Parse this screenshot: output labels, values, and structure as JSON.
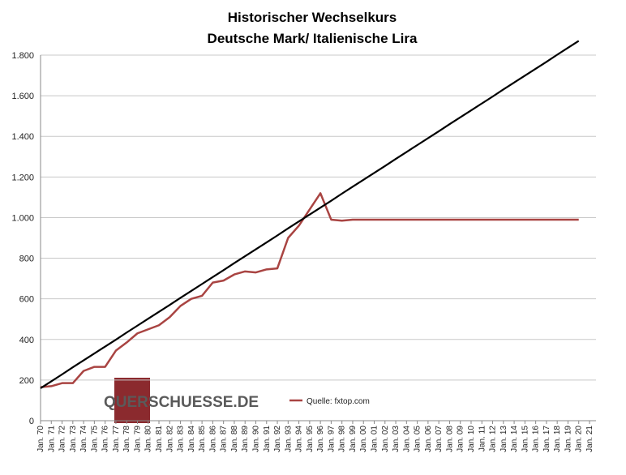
{
  "chart_data": {
    "type": "line",
    "title": [
      "Historischer Wechselkurs",
      "Deutsche Mark/ Italienische Lira"
    ],
    "categories": [
      "Jan. 70",
      "Jan. 71",
      "Jan. 72",
      "Jan. 73",
      "Jan. 74",
      "Jan. 75",
      "Jan. 76",
      "Jan. 77",
      "Jan. 78",
      "Jan. 79",
      "Jan. 80",
      "Jan. 81",
      "Jan. 82",
      "Jan. 83",
      "Jan. 84",
      "Jan. 85",
      "Jan. 86",
      "Jan. 87",
      "Jan. 88",
      "Jan. 89",
      "Jan. 90",
      "Jan. 91",
      "Jan. 92",
      "Jan. 93",
      "Jan. 94",
      "Jan. 95",
      "Jan. 96",
      "Jan. 97",
      "Jan. 98",
      "Jan. 99",
      "Jan. 00",
      "Jan. 01",
      "Jan. 02",
      "Jan. 03",
      "Jan. 04",
      "Jan. 05",
      "Jan. 06",
      "Jan. 07",
      "Jan. 08",
      "Jan. 09",
      "Jan. 10",
      "Jan. 11",
      "Jan. 12",
      "Jan. 13",
      "Jan. 14",
      "Jan. 15",
      "Jan. 16",
      "Jan. 17",
      "Jan. 18",
      "Jan. 19",
      "Jan. 20",
      "Jan. 21"
    ],
    "series": [
      {
        "name": "Quelle: fxtop.com",
        "color": "#a94442",
        "values": [
          165,
          170,
          185,
          185,
          245,
          265,
          265,
          345,
          385,
          430,
          450,
          470,
          510,
          565,
          600,
          615,
          680,
          690,
          720,
          735,
          730,
          745,
          750,
          900,
          960,
          1040,
          1120,
          990,
          985,
          990,
          990,
          990,
          990,
          990,
          990,
          990,
          990,
          990,
          990,
          990,
          990,
          990,
          990,
          990,
          990,
          990,
          990,
          990,
          990,
          990,
          990,
          null
        ]
      },
      {
        "color": "#000000",
        "values": [
          160,
          194,
          228,
          263,
          297,
          331,
          365,
          399,
          434,
          468,
          502,
          536,
          570,
          605,
          639,
          673,
          707,
          741,
          776,
          810,
          844,
          878,
          912,
          947,
          981,
          1015,
          1049,
          1083,
          1118,
          1152,
          1186,
          1220,
          1254,
          1289,
          1323,
          1357,
          1391,
          1425,
          1460,
          1494,
          1528,
          1562,
          1596,
          1631,
          1665,
          1699,
          1733,
          1767,
          1802,
          1836,
          1870,
          null
        ]
      }
    ],
    "ylim": [
      0,
      1800
    ],
    "yticks": [
      0,
      200,
      400,
      600,
      800,
      {
        "value": 1000,
        "label": "1.000"
      },
      {
        "value": 1200,
        "label": "1.200"
      },
      {
        "value": 1400,
        "label": "1.400"
      },
      {
        "value": 1600,
        "label": "1.600"
      },
      {
        "value": 1800,
        "label": "1.800"
      }
    ],
    "grid": true,
    "logo": "QUERSCHUESSE.DE"
  }
}
